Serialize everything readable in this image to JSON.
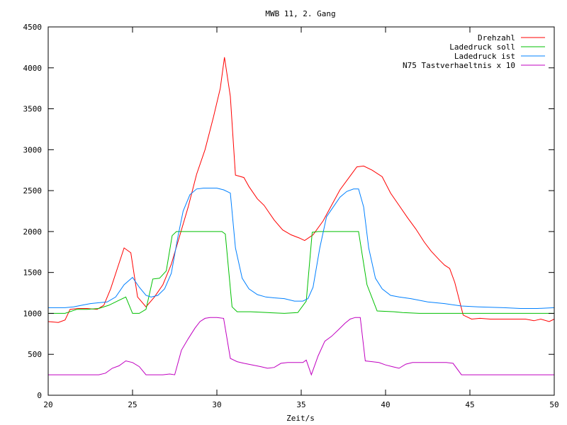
{
  "chart_data": {
    "type": "line",
    "title": "MWB 11, 2. Gang",
    "xlabel": "Zeit/s",
    "ylabel": "",
    "xlim": [
      20,
      50
    ],
    "ylim": [
      0,
      4500
    ],
    "xticks": [
      20,
      25,
      30,
      35,
      40,
      45,
      50
    ],
    "yticks": [
      0,
      500,
      1000,
      1500,
      2000,
      2500,
      3000,
      3500,
      4000,
      4500
    ],
    "grid": false,
    "legend_position": "top-right",
    "series": [
      {
        "name": "Drehzahl",
        "color": "#ff0000",
        "x": [
          20,
          20.6,
          21,
          21.3,
          21.8,
          22.3,
          22.9,
          23.3,
          23.7,
          24.1,
          24.5,
          24.9,
          25.3,
          25.8,
          26.3,
          26.8,
          27.3,
          27.8,
          28.3,
          28.8,
          29.3,
          29.8,
          30.2,
          30.45,
          30.8,
          31.1,
          31.6,
          31.9,
          32.4,
          32.8,
          33.4,
          33.9,
          34.4,
          34.9,
          35.2,
          35.7,
          36.3,
          36.8,
          37.3,
          37.8,
          38.3,
          38.7,
          39.2,
          39.8,
          40.3,
          40.8,
          41.3,
          41.8,
          42.3,
          42.7,
          43.2,
          43.5,
          43.8,
          44.1,
          44.6,
          45.1,
          45.6,
          46.2,
          46.8,
          47.4,
          47.8,
          48.3,
          48.8,
          49.2,
          49.7,
          50
        ],
        "y": [
          900,
          890,
          920,
          1050,
          1060,
          1060,
          1050,
          1100,
          1300,
          1550,
          1800,
          1740,
          1200,
          1080,
          1200,
          1350,
          1600,
          1950,
          2300,
          2700,
          3000,
          3400,
          3750,
          4130,
          3650,
          2690,
          2660,
          2550,
          2400,
          2320,
          2140,
          2020,
          1960,
          1920,
          1890,
          1960,
          2130,
          2320,
          2510,
          2650,
          2790,
          2800,
          2750,
          2670,
          2470,
          2320,
          2170,
          2030,
          1870,
          1760,
          1650,
          1590,
          1550,
          1380,
          980,
          930,
          940,
          930,
          930,
          930,
          930,
          930,
          910,
          930,
          900,
          930
        ]
      },
      {
        "name": "Ladedruck soll",
        "color": "#00c000",
        "x": [
          20,
          21,
          21.7,
          22.3,
          23,
          23.6,
          24.1,
          24.6,
          25,
          25.4,
          25.8,
          26.2,
          26.6,
          27,
          27.35,
          27.6,
          28,
          29,
          30,
          30.3,
          30.5,
          30.9,
          31.2,
          32,
          33,
          34,
          34.8,
          35.3,
          35.65,
          36,
          37,
          38,
          38.4,
          38.9,
          39.5,
          40.5,
          41,
          42,
          44,
          46,
          48,
          50
        ],
        "y": [
          1000,
          1000,
          1050,
          1050,
          1060,
          1100,
          1150,
          1200,
          1000,
          1000,
          1050,
          1420,
          1430,
          1520,
          1950,
          2000,
          2000,
          2000,
          2000,
          2000,
          1970,
          1080,
          1020,
          1020,
          1010,
          1000,
          1010,
          1150,
          1990,
          2000,
          2000,
          2000,
          2000,
          1350,
          1030,
          1020,
          1010,
          1000,
          1000,
          1000,
          1000,
          1000
        ]
      },
      {
        "name": "Ladedruck ist",
        "color": "#0080ff",
        "x": [
          20,
          21,
          21.5,
          22,
          22.5,
          23,
          23.5,
          24,
          24.5,
          25,
          25.4,
          25.8,
          26.1,
          26.5,
          26.9,
          27.3,
          27.7,
          28,
          28.4,
          28.8,
          29.2,
          30,
          30.4,
          30.8,
          31.1,
          31.5,
          31.9,
          32.4,
          32.9,
          33.4,
          34,
          34.6,
          35.1,
          35.4,
          35.7,
          36.1,
          36.5,
          36.9,
          37.3,
          37.7,
          38.1,
          38.4,
          38.7,
          39,
          39.4,
          39.8,
          40.3,
          40.8,
          41.5,
          42.5,
          43.5,
          44.5,
          45.5,
          47,
          48,
          49,
          50
        ],
        "y": [
          1070,
          1070,
          1080,
          1100,
          1120,
          1130,
          1140,
          1200,
          1350,
          1440,
          1320,
          1220,
          1200,
          1220,
          1300,
          1490,
          1950,
          2250,
          2450,
          2520,
          2530,
          2530,
          2510,
          2470,
          1800,
          1430,
          1300,
          1230,
          1200,
          1190,
          1180,
          1150,
          1150,
          1180,
          1320,
          1800,
          2180,
          2300,
          2420,
          2490,
          2520,
          2520,
          2300,
          1800,
          1430,
          1300,
          1220,
          1200,
          1180,
          1140,
          1120,
          1090,
          1080,
          1070,
          1060,
          1060,
          1070
        ]
      },
      {
        "name": "N75 Tastverhaeltnis x 10",
        "color": "#c000c0",
        "x": [
          20,
          21,
          22,
          23,
          23.4,
          23.8,
          24.2,
          24.6,
          25,
          25.4,
          25.8,
          26.3,
          26.8,
          27.2,
          27.5,
          27.9,
          28.3,
          28.7,
          29,
          29.3,
          29.6,
          30,
          30.4,
          30.8,
          31.2,
          31.6,
          32.1,
          32.6,
          33,
          33.4,
          33.8,
          34.2,
          34.6,
          35.1,
          35.3,
          35.6,
          36,
          36.4,
          36.8,
          37.2,
          37.6,
          37.9,
          38.2,
          38.5,
          38.8,
          39.2,
          39.6,
          40,
          40.4,
          40.8,
          41.2,
          41.6,
          42,
          42.4,
          42.8,
          43.2,
          43.6,
          44,
          44.5,
          45,
          46,
          47,
          48,
          49,
          50
        ],
        "y": [
          250,
          250,
          250,
          250,
          270,
          330,
          360,
          420,
          400,
          350,
          250,
          250,
          250,
          260,
          250,
          550,
          690,
          820,
          900,
          940,
          950,
          950,
          940,
          450,
          410,
          390,
          370,
          350,
          330,
          340,
          390,
          400,
          400,
          400,
          430,
          250,
          480,
          660,
          720,
          800,
          880,
          930,
          950,
          950,
          420,
          410,
          400,
          370,
          350,
          330,
          380,
          400,
          400,
          400,
          400,
          400,
          400,
          390,
          250,
          250,
          250,
          250,
          250,
          250,
          250
        ]
      }
    ]
  }
}
